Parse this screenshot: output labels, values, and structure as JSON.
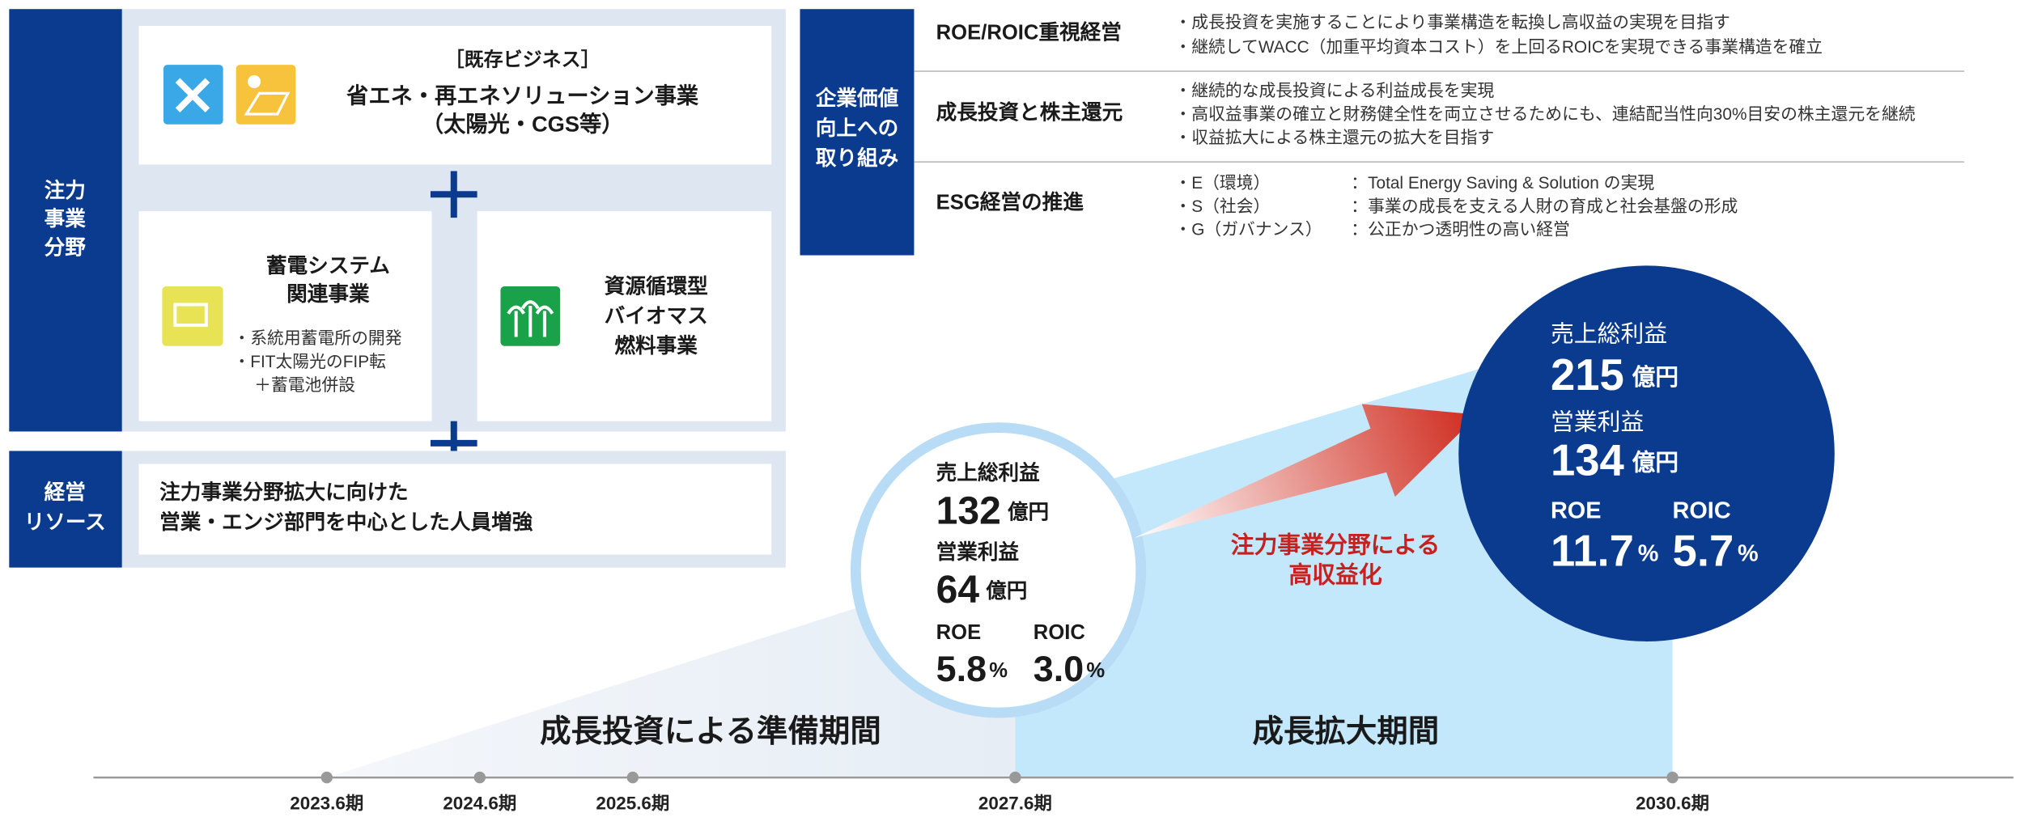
{
  "focus": {
    "heading": [
      "注力",
      "事業",
      "分野"
    ],
    "existing": {
      "tag": "［既存ビジネス］",
      "title": "省エネ・再エネソリューション事業",
      "sub": "（太陽光・CGS等）"
    },
    "storage": {
      "title": [
        "蓄電システム",
        "関連事業"
      ],
      "bullets": [
        "・系統用蓄電所の開発",
        "・FIT太陽光のFIP転",
        "＋蓄電池併設"
      ]
    },
    "biomass": {
      "title": [
        "資源循環型",
        "バイオマス",
        "燃料事業"
      ]
    }
  },
  "resources": {
    "heading": [
      "経営",
      "リソース"
    ],
    "text": [
      "注力事業分野拡大に向けた",
      "営業・エンジ部門を中心とした人員増強"
    ]
  },
  "value": {
    "heading": [
      "企業価値",
      "向上への",
      "取り組み"
    ],
    "rows": [
      {
        "title": "ROE/ROIC重視経営",
        "bullets": [
          "・成長投資を実施することにより事業構造を転換し高収益の実現を目指す",
          "・継続してWACC（加重平均資本コスト）を上回るROICを実現できる事業構造を確立"
        ]
      },
      {
        "title": "成長投資と株主還元",
        "bullets": [
          "・継続的な成長投資による利益成長を実現",
          "・高収益事業の確立と財務健全性を両立させるためにも、連結配当性向30%目安の株主還元を継続",
          "・収益拡大による株主還元の拡大を目指す"
        ]
      },
      {
        "title": "ESG経営の推進",
        "items": [
          {
            "label": "・E（環境）",
            "text": "：Total Energy Saving & Solution の実現"
          },
          {
            "label": "・S（社会）",
            "text": "：事業の成長を支える人財の育成と社会基盤の形成"
          },
          {
            "label": "・G（ガバナンス）",
            "text": "：公正かつ透明性の高い経営"
          }
        ]
      }
    ]
  },
  "timeline": {
    "periods": [
      "成長投資による準備期間",
      "成長拡大期間"
    ],
    "ticks": [
      "2023.6期",
      "2024.6期",
      "2025.6期",
      "2027.6期",
      "2030.6期"
    ]
  },
  "arrow_text": [
    "注力事業分野による",
    "高収益化"
  ],
  "current": {
    "gross_label": "売上総利益",
    "gross": "132",
    "gross_unit": "億円",
    "op_label": "営業利益",
    "op": "64",
    "op_unit": "億円",
    "roe_label": "ROE",
    "roe": "5.8",
    "roe_unit": "%",
    "roic_label": "ROIC",
    "roic": "3.0",
    "roic_unit": "%"
  },
  "target": {
    "gross_label": "売上総利益",
    "gross": "215",
    "gross_unit": "億円",
    "op_label": "営業利益",
    "op": "134",
    "op_unit": "億円",
    "roe_label": "ROE",
    "roe": "11.7",
    "roe_unit": "%",
    "roic_label": "ROIC",
    "roic": "5.7",
    "roic_unit": "%"
  }
}
